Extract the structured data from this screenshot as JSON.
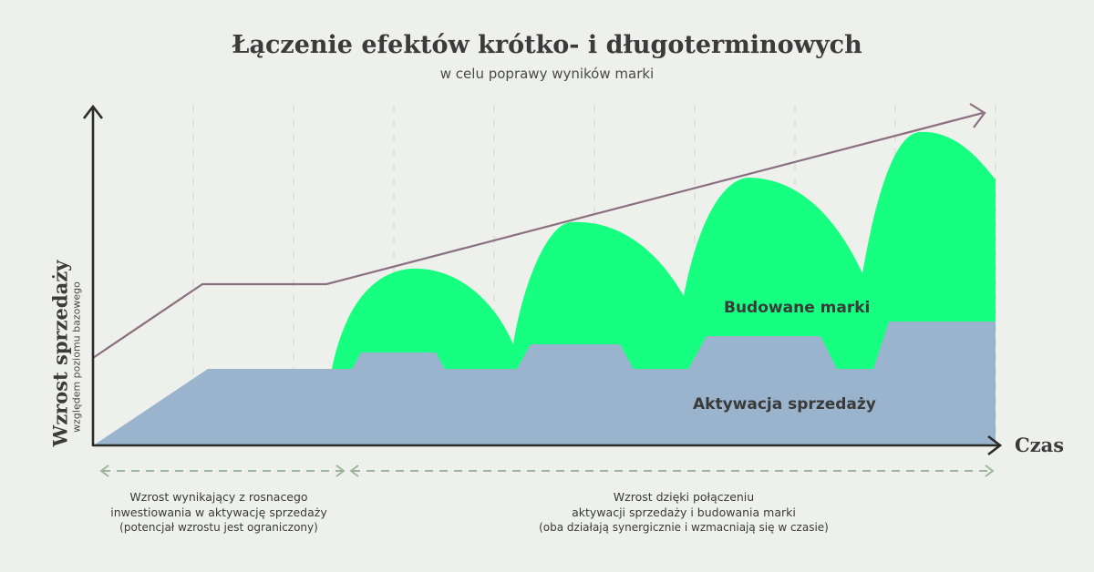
{
  "title": "Łączenie efektów krótko- i długoterminowych",
  "subtitle": "w celu poprawy wyników marki",
  "y_axis": {
    "label": "Wzrost sprzedaży",
    "sublabel": "względem poziomu bazowego"
  },
  "x_axis": {
    "label": "Czas"
  },
  "areas": {
    "brand": {
      "label": "Budowane marki",
      "color": "#17ff80"
    },
    "activation": {
      "label": "Aktywacja sprzedaży",
      "color": "#99b4cc"
    }
  },
  "trend_line_color": "#8a7080",
  "phase_arrow_color": "#9cb89a",
  "phases": [
    {
      "line1": "Wzrost wynikający z rosnacego",
      "line2": "inwestiowania w aktywację sprzedaży",
      "note": "(potencjał wzrostu jest ograniczony)"
    },
    {
      "line1": "Wzrost dzięki połączeniu",
      "line2": "aktywacji sprzedaży i budowania marki",
      "note": "(oba działają synergicznie i wzmacniają się w czasie)"
    }
  ]
}
